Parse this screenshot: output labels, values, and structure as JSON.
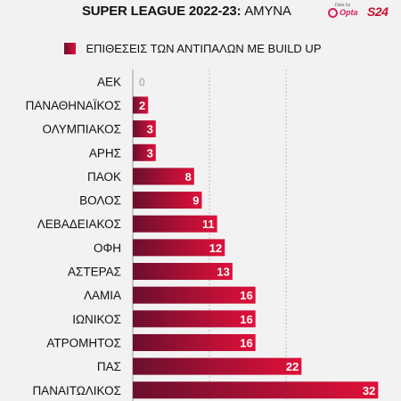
{
  "header": {
    "title_bold": "SUPER LEAGUE 2022-23:",
    "title_light": "ΑΜΥΝΑ",
    "opta_caption": "Data by",
    "opta_word": "Opta",
    "brand": "S24"
  },
  "colors": {
    "bar_start": "#6b0f2d",
    "bar_end": "#e0103a",
    "background": "#f2f2f2"
  },
  "chart_data": {
    "type": "bar",
    "orientation": "horizontal",
    "categories": [
      "ΑΕΚ",
      "ΠΑΝΑΘΗΝΑΪΚΟΣ",
      "ΟΛΥΜΠΙΑΚΟΣ",
      "ΑΡΗΣ",
      "ΠΑΟΚ",
      "ΒΟΛΟΣ",
      "ΛΕΒΑΔΕΙΑΚΟΣ",
      "ΟΦΗ",
      "ΑΣΤΕΡΑΣ",
      "ΛΑΜΙΑ",
      "ΙΩΝΙΚΟΣ",
      "ΑΤΡΟΜΗΤΟΣ",
      "ΠΑΣ",
      "ΠΑΝΑΙΤΩΛΙΚΟΣ"
    ],
    "series": [
      {
        "name": "ΕΠΙΘΕΣΕΙΣ ΤΩΝ ΑΝΤΙΠΑΛΩΝ ΜΕ BUILD UP",
        "values": [
          0,
          2,
          3,
          3,
          8,
          9,
          11,
          12,
          13,
          16,
          16,
          16,
          22,
          32
        ]
      }
    ],
    "xlim": [
      0,
      33
    ],
    "gridlines": [
      0,
      10,
      20
    ],
    "legend_position": "top-left"
  }
}
